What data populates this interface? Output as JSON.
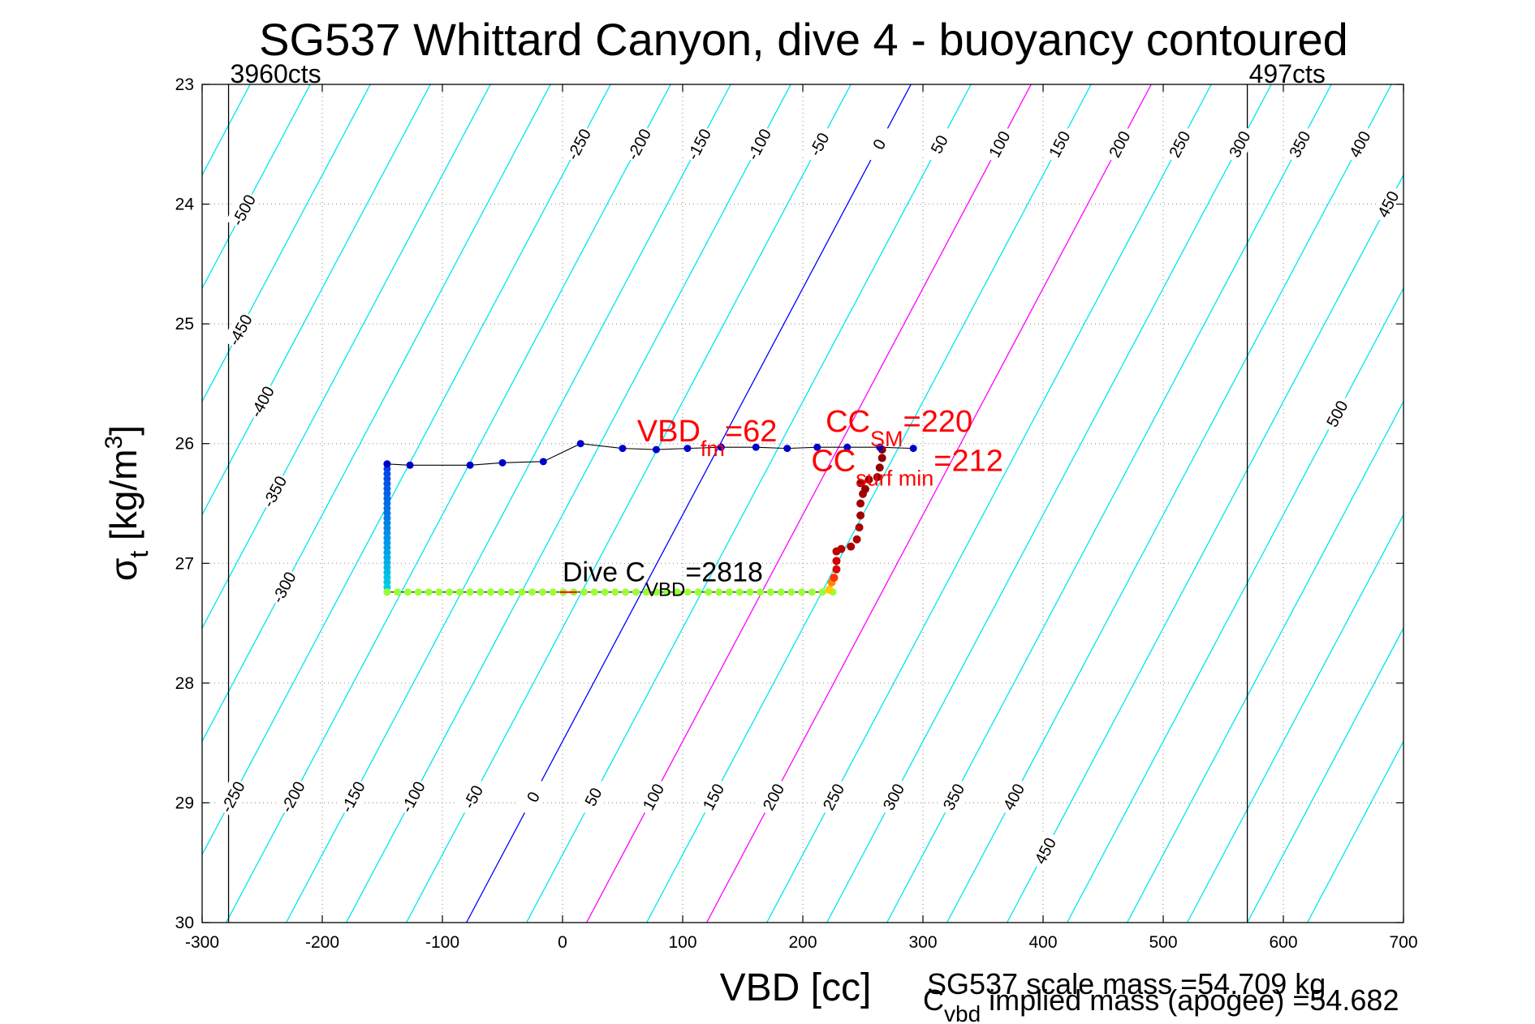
{
  "chart_data": {
    "type": "scatter",
    "title": "SG537 Whittard Canyon, dive 4 - buoyancy contoured",
    "xlabel": "VBD [cc]",
    "ylabel_main": "σ",
    "ylabel_sub": "t",
    "ylabel_unit": " [kg/m",
    "ylabel_sup": "3",
    "ylabel_close": "]",
    "xlim": [
      -300,
      700
    ],
    "ylim": [
      23,
      30
    ],
    "y_reversed": true,
    "grid": true,
    "x_ticks": [
      -300,
      -200,
      -100,
      0,
      100,
      200,
      300,
      400,
      500,
      600,
      700
    ],
    "y_ticks": [
      23,
      24,
      25,
      26,
      27,
      28,
      29,
      30
    ],
    "vertical_lines": [
      {
        "x": -278,
        "label": "3960cts"
      },
      {
        "x": 570,
        "label": "497cts"
      }
    ],
    "contours": {
      "values": [
        -550,
        -500,
        -450,
        -400,
        -350,
        -300,
        -250,
        -200,
        -150,
        -100,
        -50,
        0,
        50,
        100,
        150,
        200,
        250,
        300,
        350,
        400,
        450,
        500,
        550,
        600,
        650,
        700
      ],
      "top_labels": [
        -500,
        -450,
        -400,
        -350,
        -300,
        -250,
        -200,
        -150,
        -100,
        -50,
        0,
        50,
        100,
        150,
        200,
        250,
        300,
        350,
        400,
        450,
        500
      ],
      "bottom_labels": [
        -250,
        -200,
        -150,
        -100,
        -50,
        0,
        50,
        100,
        150,
        200,
        250,
        300,
        350,
        400,
        450
      ],
      "colors": {
        "default": "#00e5ee",
        "zero": "#0000ff",
        "highlight": "#ff00ff"
      },
      "highlight_values": [
        100,
        200
      ],
      "zero_line_x_at_23": 290,
      "zero_line_x_at_30": -80,
      "spacing_cc": 50
    },
    "series": [
      {
        "points": [
          {
            "x": -146,
            "y": 26.17
          },
          {
            "x": -127,
            "y": 26.18
          },
          {
            "x": -77,
            "y": 26.18
          },
          {
            "x": -50,
            "y": 26.16
          },
          {
            "x": -16,
            "y": 26.15
          },
          {
            "x": 15,
            "y": 26.0
          },
          {
            "x": 50,
            "y": 26.04
          },
          {
            "x": 78,
            "y": 26.05
          },
          {
            "x": 104,
            "y": 26.04
          },
          {
            "x": 132,
            "y": 26.03
          },
          {
            "x": 161,
            "y": 26.03
          },
          {
            "x": 187,
            "y": 26.04
          },
          {
            "x": 212,
            "y": 26.03
          },
          {
            "x": 237,
            "y": 26.03
          },
          {
            "x": 264,
            "y": 26.03
          },
          {
            "x": 292,
            "y": 26.04
          }
        ],
        "color": "#0000cc"
      },
      {
        "x_from": -146,
        "x_to": 225,
        "y": 27.24,
        "count": 44,
        "color": "#99ff33"
      }
    ],
    "annotations": [
      {
        "main": "VBD",
        "sub": "fm",
        "rest": "=62",
        "color": "#ff0000"
      },
      {
        "main": "CC",
        "sub": "SM",
        "rest": "=220",
        "color": "#ff0000"
      },
      {
        "main": "CC",
        "sub": "surf min",
        "rest": "=212",
        "color": "#ff0000"
      },
      {
        "main": "Dive C",
        "sub": "VBD",
        "rest": "=2818",
        "color": "#000000"
      }
    ],
    "footer": {
      "line1": "SG537 scale mass =54.709 kg",
      "line2_main": "C",
      "line2_sub": "vbd",
      "line2_rest": " implied mass (apogee) =54.682"
    }
  }
}
